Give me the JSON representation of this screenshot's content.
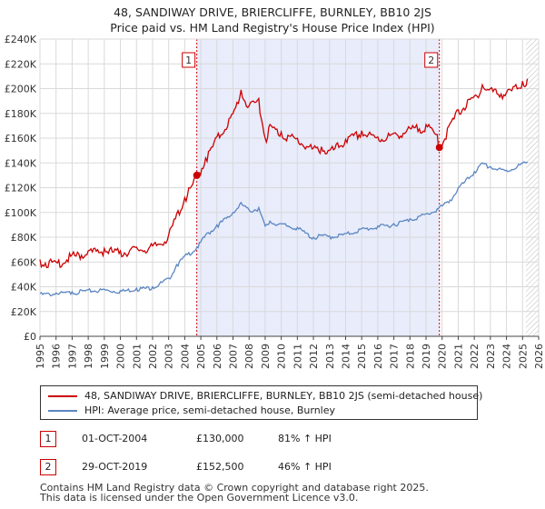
{
  "title_line1": "48, SANDIWAY DRIVE, BRIERCLIFFE, BURNLEY, BB10 2JS",
  "title_line2": "Price paid vs. HM Land Registry's House Price Index (HPI)",
  "chart_data": {
    "type": "line",
    "title": "48, SANDIWAY DRIVE, BRIERCLIFFE, BURNLEY, BB10 2JS — Price paid vs. HM Land Registry's House Price Index (HPI)",
    "xlim": [
      1995,
      2026
    ],
    "ylim": [
      0,
      240000
    ],
    "x_ticks": [
      "1995",
      "1996",
      "1997",
      "1998",
      "1999",
      "2000",
      "2001",
      "2002",
      "2003",
      "2004",
      "2005",
      "2006",
      "2007",
      "2008",
      "2009",
      "2010",
      "2011",
      "2012",
      "2013",
      "2014",
      "2015",
      "2016",
      "2017",
      "2018",
      "2019",
      "2020",
      "2021",
      "2022",
      "2023",
      "2024",
      "2025",
      "2026"
    ],
    "y_ticks": [
      "£0",
      "£20K",
      "£40K",
      "£60K",
      "£80K",
      "£100K",
      "£120K",
      "£140K",
      "£160K",
      "£180K",
      "£200K",
      "£220K",
      "£240K"
    ],
    "shaded_range": [
      2004.75,
      2019.83
    ],
    "hatched_from": 2025.2,
    "series": [
      {
        "name": "48, SANDIWAY DRIVE, BRIERCLIFFE, BURNLEY, BB10 2JS (semi-detached house)",
        "color": "#cc0000",
        "x": [
          1995,
          1996,
          1997,
          1998,
          1999,
          2000,
          2001,
          2002,
          2003,
          2003.5,
          2004,
          2004.75,
          2005.3,
          2006,
          2007,
          2007.5,
          2008,
          2008.6,
          2009,
          2009.3,
          2010,
          2011,
          2012,
          2012.5,
          2013,
          2014,
          2015,
          2016,
          2017,
          2018,
          2019,
          2019.7,
          2019.83,
          2020.5,
          2021,
          2022,
          2022.5,
          2023,
          2024,
          2025,
          2025.3
        ],
        "values": [
          62000,
          60000,
          66000,
          69000,
          71000,
          69000,
          72000,
          73000,
          82000,
          99000,
          112000,
          130000,
          144000,
          161000,
          180000,
          199000,
          186000,
          192000,
          160000,
          171000,
          165000,
          160000,
          152000,
          153000,
          150000,
          159000,
          166000,
          161000,
          164000,
          168000,
          171000,
          163000,
          152500,
          172000,
          183000,
          194000,
          203000,
          200000,
          197000,
          206000,
          208000
        ]
      },
      {
        "name": "HPI: Average price, semi-detached house, Burnley",
        "color": "#5b86c2",
        "x": [
          1995,
          1996,
          1997,
          1998,
          1999,
          2000,
          2001,
          2002,
          2003,
          2003.5,
          2004,
          2004.75,
          2005.3,
          2006,
          2007,
          2007.5,
          2008,
          2008.6,
          2009,
          2009.3,
          2010,
          2011,
          2012,
          2012.5,
          2013,
          2014,
          2015,
          2016,
          2017,
          2018,
          2019,
          2019.7,
          2019.83,
          2020.5,
          2021,
          2022,
          2022.5,
          2023,
          2024,
          2025,
          2025.3
        ],
        "values": [
          34500,
          35000,
          36000,
          37500,
          38000,
          37000,
          39000,
          40000,
          47000,
          58000,
          65000,
          72000,
          82000,
          90000,
          100000,
          108000,
          102000,
          104000,
          89000,
          93000,
          91000,
          88000,
          80000,
          82000,
          81000,
          83000,
          87000,
          89000,
          91000,
          95000,
          99000,
          103000,
          104500,
          110000,
          120000,
          133000,
          140000,
          137000,
          134000,
          140000,
          141000
        ]
      }
    ],
    "markers": [
      {
        "label": "1",
        "x": 2004.75,
        "y": 130000
      },
      {
        "label": "2",
        "x": 2019.83,
        "y": 152500
      }
    ]
  },
  "legend": {
    "series1": "48, SANDIWAY DRIVE, BRIERCLIFFE, BURNLEY, BB10 2JS (semi-detached house)",
    "series2": "HPI: Average price, semi-detached house, Burnley"
  },
  "transactions": [
    {
      "num": "1",
      "date": "01-OCT-2004",
      "price": "£130,000",
      "hpi": "81% ↑ HPI"
    },
    {
      "num": "2",
      "date": "29-OCT-2019",
      "price": "£152,500",
      "hpi": "46% ↑ HPI"
    }
  ],
  "footer_line1": "Contains HM Land Registry data © Crown copyright and database right 2025.",
  "footer_line2": "This data is licensed under the Open Government Licence v3.0."
}
